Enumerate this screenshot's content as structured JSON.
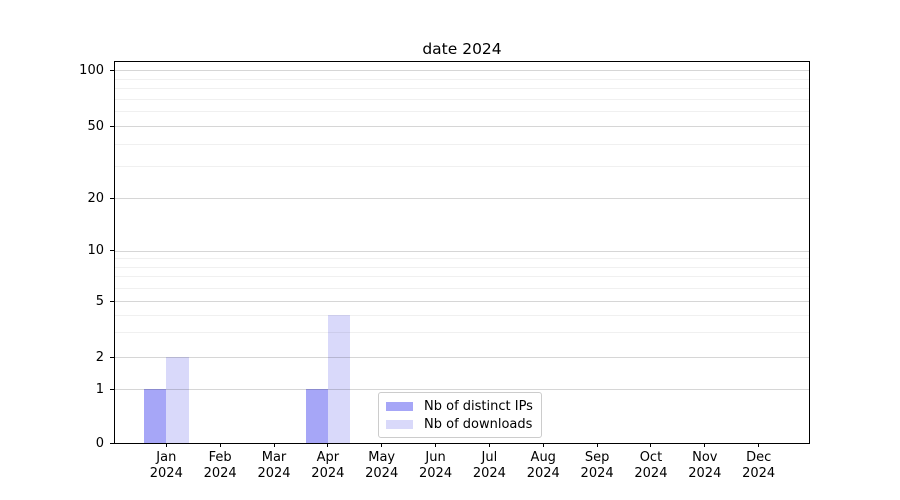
{
  "chart_data": {
    "type": "bar",
    "title": "date 2024",
    "categories": [
      "Jan 2024",
      "Feb 2024",
      "Mar 2024",
      "Apr 2024",
      "May 2024",
      "Jun 2024",
      "Jul 2024",
      "Aug 2024",
      "Sep 2024",
      "Oct 2024",
      "Nov 2024",
      "Dec 2024"
    ],
    "month_labels": [
      "Jan",
      "Feb",
      "Mar",
      "Apr",
      "May",
      "Jun",
      "Jul",
      "Aug",
      "Sep",
      "Oct",
      "Nov",
      "Dec"
    ],
    "year_label": "2024",
    "series": [
      {
        "name": "Nb of distinct IPs",
        "color": "#a6a6f7",
        "values": [
          1,
          0,
          0,
          1,
          0,
          0,
          0,
          0,
          0,
          0,
          0,
          0
        ]
      },
      {
        "name": "Nb of downloads",
        "color": "#d9d9fa",
        "values": [
          2,
          0,
          0,
          4,
          0,
          0,
          0,
          0,
          0,
          0,
          0,
          0
        ]
      }
    ],
    "y_axis": {
      "scale": "symlog",
      "tick_labels": [
        "0",
        "1",
        "2",
        "5",
        "10",
        "20",
        "50",
        "100"
      ],
      "tick_values": [
        0,
        1,
        2,
        5,
        10,
        20,
        50,
        100
      ],
      "minor_tick_values": [
        3,
        4,
        6,
        7,
        8,
        9,
        30,
        40,
        60,
        70,
        80,
        90
      ],
      "ylim": [
        0,
        112
      ]
    },
    "xlabel": "",
    "ylabel": "",
    "grid": true,
    "legend_position": "lower center"
  }
}
